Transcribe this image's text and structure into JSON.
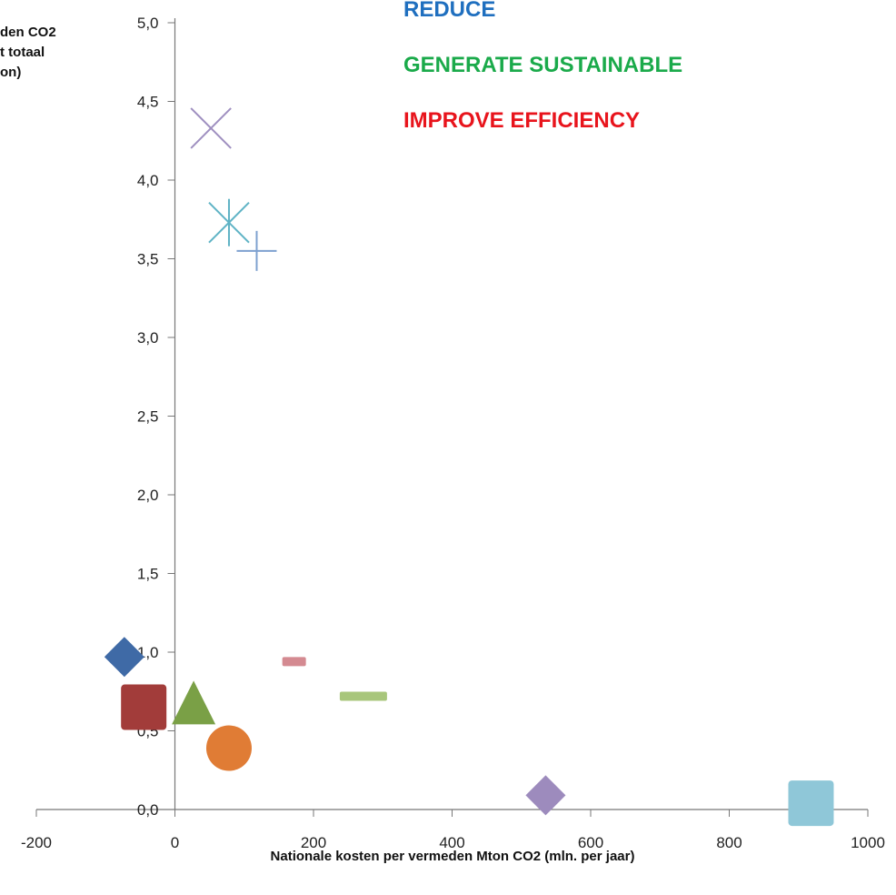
{
  "chart_data": {
    "type": "scatter",
    "title": "",
    "xlabel": "Nationale kosten per vermeden Mton CO2 (mln. per jaar)",
    "ylabel_lines": [
      "den CO2",
      "t totaal",
      "on)"
    ],
    "xlim": [
      -200,
      1000
    ],
    "ylim": [
      0,
      5
    ],
    "x_ticks": [
      -200,
      0,
      200,
      400,
      600,
      800,
      1000
    ],
    "x_tick_labels": [
      "-200",
      "0",
      "200",
      "400",
      "600",
      "800",
      "1000"
    ],
    "y_ticks": [
      0,
      0.5,
      1,
      1.5,
      2,
      2.5,
      3,
      3.5,
      4,
      4.5,
      5
    ],
    "y_tick_labels": [
      "0,0",
      "0,5",
      "1,0",
      "1,5",
      "2,0",
      "2,5",
      "3,0",
      "3,5",
      "4,0",
      "4,5",
      "5,0"
    ],
    "grid": false,
    "legend_text": [
      {
        "text": "REDUCE",
        "color": "#1f6fbf"
      },
      {
        "text": "GENERATE SUSTAINABLE",
        "color": "#1aaa4a"
      },
      {
        "text": "IMPROVE EFFICIENCY",
        "color": "#e8141c"
      }
    ],
    "points": [
      {
        "x": 52,
        "y": 4.33,
        "marker": "x",
        "color": "#9f8fc0"
      },
      {
        "x": 78,
        "y": 3.73,
        "marker": "star",
        "color": "#5fb3c5"
      },
      {
        "x": 118,
        "y": 3.55,
        "marker": "plus",
        "color": "#7ea1d0"
      },
      {
        "x": -73,
        "y": 0.97,
        "marker": "diamond",
        "color": "#3f6aa6"
      },
      {
        "x": -45,
        "y": 0.65,
        "marker": "square",
        "color": "#a23c3a"
      },
      {
        "x": 27,
        "y": 0.68,
        "marker": "triangle",
        "color": "#7aa046"
      },
      {
        "x": 78,
        "y": 0.39,
        "marker": "circle",
        "color": "#e07c35"
      },
      {
        "x": 172,
        "y": 0.94,
        "marker": "dash",
        "color": "#d48a91"
      },
      {
        "x": 272,
        "y": 0.72,
        "marker": "dash-wide",
        "color": "#a8c67b"
      },
      {
        "x": 535,
        "y": 0.09,
        "marker": "diamond",
        "color": "#9d8bbd"
      },
      {
        "x": 918,
        "y": 0.04,
        "marker": "square",
        "color": "#8fc7d8"
      }
    ]
  }
}
